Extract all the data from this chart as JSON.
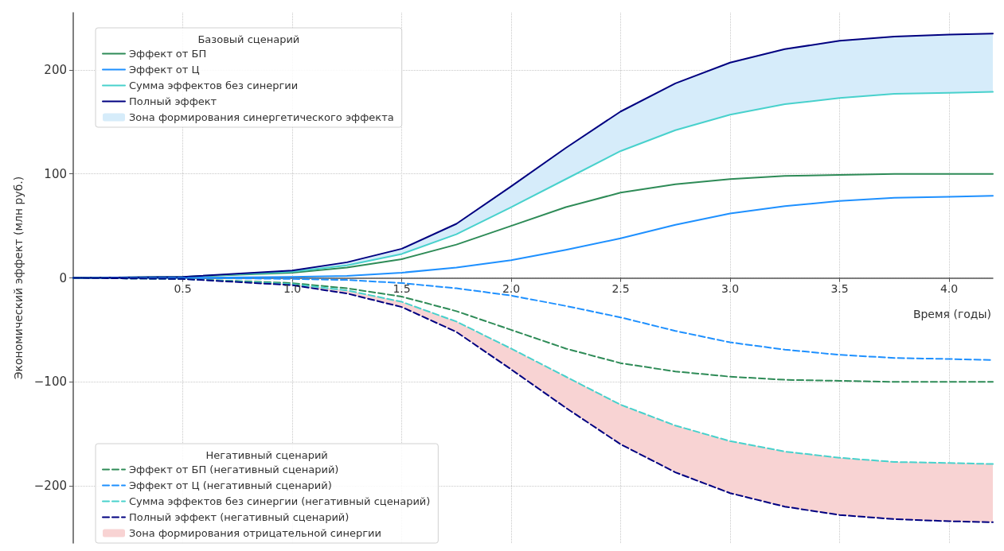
{
  "chart_data": {
    "type": "line",
    "xlabel": "Время (годы)",
    "ylabel": "Экономический эффект (млн руб.)",
    "annotations": [
      "Базовый сценарий",
      "Негативный сценарий"
    ],
    "x": [
      0,
      0.5,
      1.0,
      1.25,
      1.5,
      1.75,
      2.0,
      2.25,
      2.5,
      2.75,
      3.0,
      3.25,
      3.5,
      3.75,
      4.0,
      4.2
    ],
    "series": [
      {
        "name": "Эффект от БП",
        "color": "#2e8b57",
        "line_style": "solid",
        "values": [
          0,
          1,
          5,
          10,
          18,
          32,
          50,
          68,
          82,
          90,
          95,
          98,
          99,
          100,
          100,
          100
        ]
      },
      {
        "name": "Эффект от Ц",
        "color": "#1e90ff",
        "line_style": "solid",
        "values": [
          0,
          0,
          1,
          2,
          5,
          10,
          17,
          27,
          38,
          51,
          62,
          69,
          74,
          77,
          78,
          79
        ]
      },
      {
        "name": "Сумма эффектов без синергии",
        "color": "#48d1cc",
        "line_style": "solid",
        "values": [
          0,
          1,
          6,
          12,
          23,
          42,
          68,
          95,
          122,
          142,
          157,
          167,
          173,
          177,
          178,
          179
        ]
      },
      {
        "name": "Полный эффект",
        "color": "#000080",
        "line_style": "solid",
        "values": [
          0,
          1,
          7,
          15,
          28,
          52,
          88,
          125,
          160,
          187,
          207,
          220,
          228,
          232,
          234,
          235
        ]
      },
      {
        "name": "Зона формирования синергетического эффекта",
        "type": "area",
        "color": "#d6ecfa",
        "values": [
          null,
          null,
          null,
          null,
          null,
          null,
          null,
          null,
          null,
          null,
          null,
          null,
          null,
          null,
          null,
          null
        ],
        "lower": [
          0,
          1,
          6,
          12,
          23,
          42,
          68,
          95,
          122,
          142,
          157,
          167,
          173,
          177,
          178,
          179
        ],
        "upper": [
          0,
          1,
          7,
          15,
          28,
          52,
          88,
          125,
          160,
          187,
          207,
          220,
          228,
          232,
          234,
          235
        ]
      },
      {
        "name": "Эффект от БП (негативный сценарий)",
        "color": "#2e8b57",
        "line_style": "dashed",
        "values": [
          0,
          -1,
          -5,
          -10,
          -18,
          -32,
          -50,
          -68,
          -82,
          -90,
          -95,
          -98,
          -99,
          -100,
          -100,
          -100
        ]
      },
      {
        "name": "Эффект от Ц (негативный сценарий)",
        "color": "#1e90ff",
        "line_style": "dashed",
        "values": [
          0,
          0,
          -1,
          -2,
          -5,
          -10,
          -17,
          -27,
          -38,
          -51,
          -62,
          -69,
          -74,
          -77,
          -78,
          -79
        ]
      },
      {
        "name": "Сумма эффектов без синергии (негативный сценарий)",
        "color": "#48d1cc",
        "line_style": "dashed",
        "values": [
          0,
          -1,
          -6,
          -12,
          -23,
          -42,
          -68,
          -95,
          -122,
          -142,
          -157,
          -167,
          -173,
          -177,
          -178,
          -179
        ]
      },
      {
        "name": "Полный эффект (негативный сценарий)",
        "color": "#000080",
        "line_style": "dashed",
        "values": [
          0,
          -1,
          -7,
          -15,
          -28,
          -52,
          -88,
          -125,
          -160,
          -187,
          -207,
          -220,
          -228,
          -232,
          -234,
          -235
        ]
      },
      {
        "name": "Зона формирования отрицательной синергии",
        "type": "area",
        "color": "#f8d3d3",
        "values": [
          null,
          null,
          null,
          null,
          null,
          null,
          null,
          null,
          null,
          null,
          null,
          null,
          null,
          null,
          null,
          null
        ],
        "lower": [
          0,
          -1,
          -7,
          -15,
          -28,
          -52,
          -88,
          -125,
          -160,
          -187,
          -207,
          -220,
          -228,
          -232,
          -234,
          -235
        ],
        "upper": [
          0,
          -1,
          -6,
          -12,
          -23,
          -42,
          -68,
          -95,
          -122,
          -142,
          -157,
          -167,
          -173,
          -177,
          -178,
          -179
        ]
      }
    ],
    "xlim": [
      0,
      4.2
    ],
    "xticks": [
      0.5,
      {
        "value": 1,
        "label": "1.0"
      },
      1.5,
      {
        "value": 2,
        "label": "2.0"
      },
      2.5,
      {
        "value": 3,
        "label": "3.0"
      },
      3.5,
      {
        "value": 4,
        "label": "4.0"
      }
    ],
    "ylim": [
      -255,
      255
    ],
    "yticks": [
      {
        "value": -200,
        "label": "−200"
      },
      {
        "value": -100,
        "label": "−100"
      },
      0,
      100,
      200
    ],
    "grid": true,
    "legend": "left",
    "marker": "none"
  }
}
